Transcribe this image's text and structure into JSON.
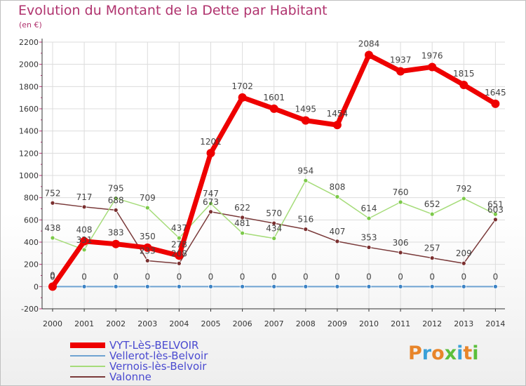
{
  "title": "Evolution du Montant de la Dette par Habitant",
  "subtitle": "(en €)",
  "logo": {
    "text": "Proxiti",
    "colors": [
      "#e8852a",
      "#3aa0d8",
      "#e8852a",
      "#5bbf3c",
      "#3aa0d8",
      "#e8852a",
      "#5bbf3c"
    ]
  },
  "chart_data": {
    "type": "line",
    "x": [
      "2000",
      "2001",
      "2002",
      "2003",
      "2004",
      "2005",
      "2006",
      "2007",
      "2008",
      "2009",
      "2010",
      "2011",
      "2012",
      "2013",
      "2014"
    ],
    "ylim": [
      -200,
      2200
    ],
    "yticks": [
      -200,
      0,
      200,
      400,
      600,
      800,
      1000,
      1200,
      1400,
      1600,
      1800,
      2000,
      2200
    ],
    "grid": true,
    "legend_position": "bottom-left",
    "series": [
      {
        "name": "VYT-LèS-BELVOIR",
        "color": "#ee0000",
        "line_width": 7,
        "marker_radius": 6,
        "values": [
          0,
          408,
          383,
          350,
          278,
          1201,
          1702,
          1601,
          1495,
          1454,
          2084,
          1937,
          1976,
          1815,
          1645
        ],
        "labels": [
          "0",
          "408",
          "383",
          "350",
          "278",
          "1201",
          "1702",
          "1601",
          "1495",
          "1454",
          "2084",
          "1937",
          "1976",
          "1815",
          "1645"
        ]
      },
      {
        "name": "Vellerot-lès-Belvoir",
        "color": "#6fa3d2",
        "marker_color": "#3b82c4",
        "line_width": 2,
        "marker_radius": 3,
        "values": [
          0,
          0,
          0,
          0,
          0,
          0,
          0,
          0,
          0,
          0,
          0,
          0,
          0,
          0,
          0
        ],
        "labels": [
          "0",
          "0",
          "0",
          "0",
          "0",
          "0",
          "0",
          "0",
          "0",
          "0",
          "0",
          "0",
          "0",
          "0",
          "0"
        ]
      },
      {
        "name": "Vernois-lès-Belvoir",
        "color": "#a6dc7a",
        "marker_color": "#7cc94a",
        "line_width": 1.5,
        "marker_radius": 3,
        "values": [
          438,
          331,
          795,
          709,
          437,
          747,
          481,
          434,
          954,
          808,
          614,
          760,
          652,
          792,
          651
        ],
        "labels": [
          "438",
          "331",
          "795",
          "709",
          "437",
          "747",
          "481",
          "434",
          "954",
          "808",
          "614",
          "760",
          "652",
          "792",
          "651"
        ]
      },
      {
        "name": "Valonne",
        "color": "#7a3a3a",
        "marker_color": "#7a2f2f",
        "line_width": 1.5,
        "marker_radius": 3,
        "values": [
          752,
          717,
          688,
          233,
          208,
          673,
          622,
          570,
          516,
          407,
          353,
          306,
          257,
          209,
          603
        ],
        "labels": [
          "752",
          "717",
          "688",
          "233",
          "208",
          "673",
          "622",
          "570",
          "516",
          "407",
          "353",
          "306",
          "257",
          "209",
          "603"
        ]
      }
    ]
  }
}
